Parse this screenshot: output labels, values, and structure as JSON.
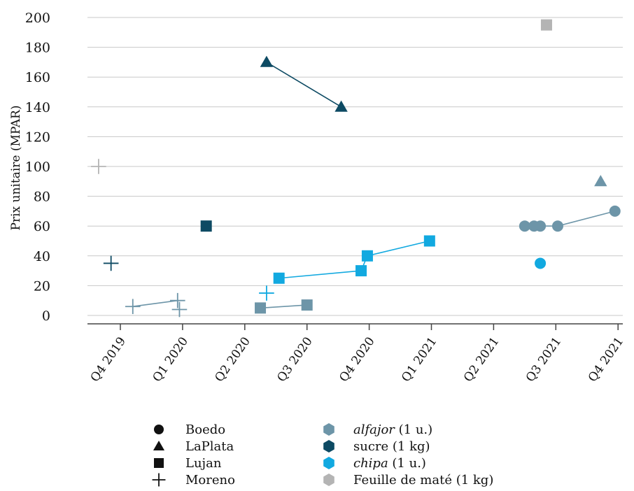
{
  "chart_data": {
    "type": "scatter",
    "ylabel": "Prix unitaire (MPAR)",
    "xlabel": "",
    "ylim": [
      0,
      200
    ],
    "yticks": [
      0,
      20,
      40,
      60,
      80,
      100,
      120,
      140,
      160,
      180,
      200
    ],
    "xticks": [
      "Q4 2019",
      "Q1 2020",
      "Q2 2020",
      "Q3 2020",
      "Q4 2020",
      "Q1 2021",
      "Q2 2021",
      "Q3 2021",
      "Q4 2021"
    ],
    "grid": "horizontal",
    "colors": {
      "alfajor": "#6d95a8",
      "sucre": "#0d4a63",
      "chipa": "#12a9e0",
      "mate": "#b4b4b4"
    },
    "legend_places": [
      {
        "label": "Boedo",
        "marker": "circle"
      },
      {
        "label": "LaPlata",
        "marker": "triangle"
      },
      {
        "label": "Lujan",
        "marker": "square"
      },
      {
        "label": "Moreno",
        "marker": "plus"
      }
    ],
    "legend_products": [
      {
        "key": "alfajor",
        "name": "alfajor",
        "suffix": " (1 u.)",
        "italic": true
      },
      {
        "key": "sucre",
        "name": "sucre (1 kg)",
        "suffix": "",
        "italic": false
      },
      {
        "key": "chipa",
        "name": "chipa",
        "suffix": " (1 u.)",
        "italic": true
      },
      {
        "key": "mate",
        "name": "Feuille de maté (1 kg)",
        "suffix": "",
        "italic": false
      }
    ],
    "series": [
      {
        "product": "mate",
        "place": "Moreno",
        "connected": false,
        "points": [
          {
            "x": -0.35,
            "y": 100
          }
        ]
      },
      {
        "product": "sucre",
        "place": "Moreno",
        "connected": false,
        "points": [
          {
            "x": -0.15,
            "y": 35
          }
        ]
      },
      {
        "product": "alfajor",
        "place": "Moreno",
        "connected": true,
        "points": [
          {
            "x": 0.2,
            "y": 6
          },
          {
            "x": 0.92,
            "y": 10
          }
        ]
      },
      {
        "product": "alfajor",
        "place": "Moreno",
        "connected": false,
        "points": [
          {
            "x": 0.95,
            "y": 4
          }
        ]
      },
      {
        "product": "sucre",
        "place": "Lujan",
        "connected": false,
        "points": [
          {
            "x": 1.38,
            "y": 60
          }
        ]
      },
      {
        "product": "sucre",
        "place": "LaPlata",
        "connected": true,
        "points": [
          {
            "x": 2.35,
            "y": 170
          },
          {
            "x": 3.55,
            "y": 140
          }
        ]
      },
      {
        "product": "chipa",
        "place": "Moreno",
        "connected": false,
        "points": [
          {
            "x": 2.35,
            "y": 15
          }
        ]
      },
      {
        "product": "alfajor",
        "place": "Lujan",
        "connected": true,
        "points": [
          {
            "x": 2.25,
            "y": 5
          },
          {
            "x": 3.0,
            "y": 7
          }
        ]
      },
      {
        "product": "chipa",
        "place": "Lujan",
        "connected": true,
        "points": [
          {
            "x": 2.55,
            "y": 25
          },
          {
            "x": 3.87,
            "y": 30
          },
          {
            "x": 3.97,
            "y": 40
          },
          {
            "x": 4.97,
            "y": 50
          }
        ]
      },
      {
        "product": "alfajor",
        "place": "Boedo",
        "connected": true,
        "points": [
          {
            "x": 6.5,
            "y": 60
          },
          {
            "x": 6.65,
            "y": 60
          },
          {
            "x": 6.75,
            "y": 60
          },
          {
            "x": 7.03,
            "y": 60
          },
          {
            "x": 7.95,
            "y": 70
          }
        ]
      },
      {
        "product": "chipa",
        "place": "Boedo",
        "connected": false,
        "points": [
          {
            "x": 6.75,
            "y": 35
          }
        ]
      },
      {
        "product": "mate",
        "place": "Lujan",
        "connected": false,
        "points": [
          {
            "x": 6.85,
            "y": 195
          }
        ]
      },
      {
        "product": "alfajor",
        "place": "LaPlata",
        "connected": false,
        "points": [
          {
            "x": 7.72,
            "y": 90
          }
        ]
      }
    ]
  }
}
